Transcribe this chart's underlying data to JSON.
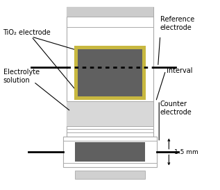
{
  "fig_width": 3.17,
  "fig_height": 2.74,
  "dpi": 100,
  "bg_color": "#ffffff",
  "labels": {
    "tio2": "TiO₂ electrode",
    "reference": "Reference\nelectrode",
    "electrolyte": "Electrolyte\nsolution",
    "interval": "Interval",
    "counter": "Counter\nelectrode",
    "dimension": "1.5 mm"
  },
  "colors": {
    "body_edge": "#aaaaaa",
    "body_fill": "#ffffff",
    "band_fill": "#cccccc",
    "tio2_border": "#c8b840",
    "tio2_dark": "#606060",
    "electrolyte": "#d8d8d8",
    "bot_assembly_fill": "#ffffff",
    "bot_dark": "#606060",
    "foot_fill": "#d0d0d0",
    "line_color": "black",
    "sep_color": "#aaaaaa"
  },
  "font_size": 7.0
}
